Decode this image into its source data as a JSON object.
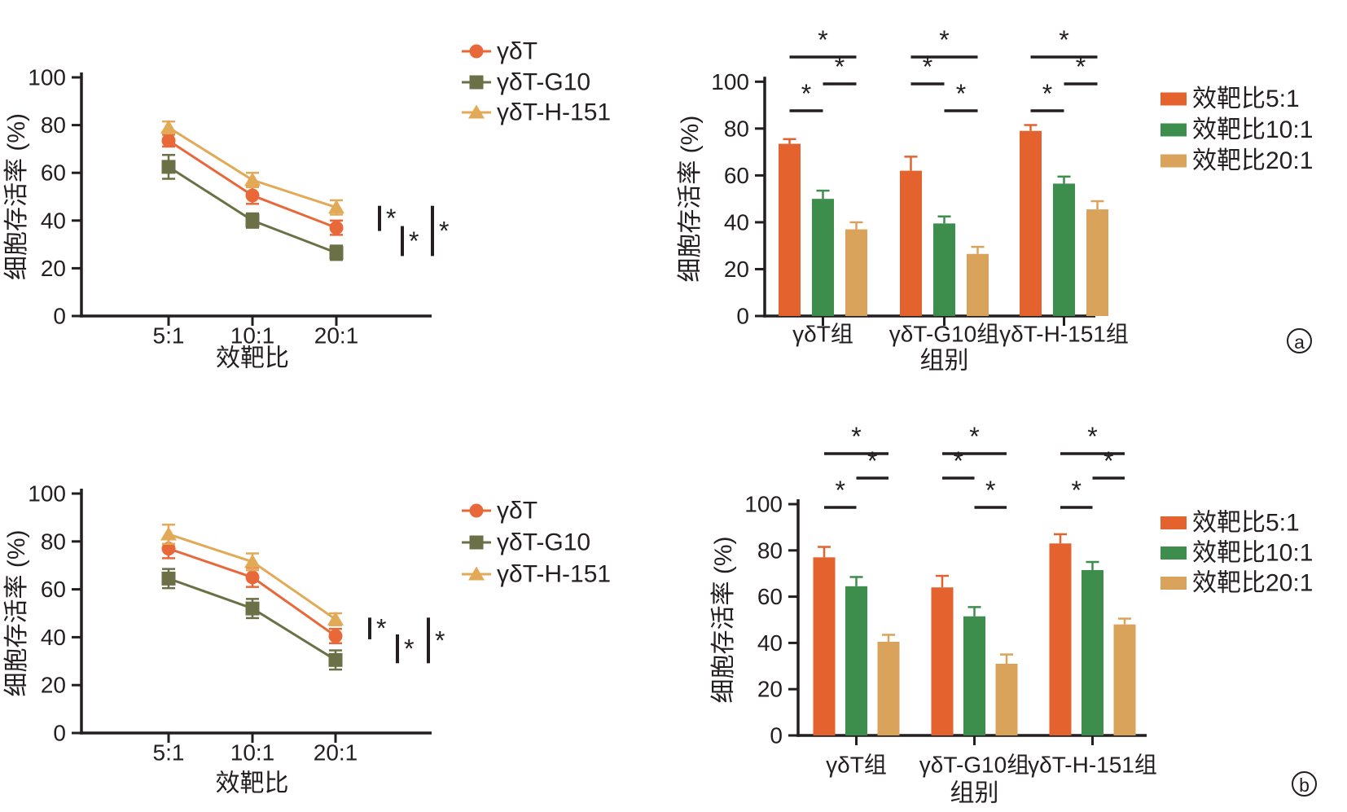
{
  "figure": {
    "background": "#FFFFFF",
    "panel_labels": {
      "a": "a",
      "b": "b"
    }
  },
  "colors": {
    "axis": "#231F20",
    "line_orange": "#E8683A",
    "line_olive": "#6B7046",
    "line_tan": "#E2A957",
    "bar_orange": "#E3622E",
    "bar_green": "#3D8E4D",
    "bar_tan": "#D9A35C"
  },
  "chart_data": [
    {
      "id": "line-a",
      "panel": "a",
      "type": "line",
      "title": "",
      "xlabel": "效靶比",
      "ylabel": "细胞存活率 (%)",
      "categories": [
        "5:1",
        "10:1",
        "20:1"
      ],
      "ylim": [
        0,
        100
      ],
      "yticks": [
        0,
        20,
        40,
        60,
        80,
        100
      ],
      "grid": false,
      "legend_position": "right-top",
      "series": [
        {
          "name": "γδT",
          "color": "#E8683A",
          "marker": "circle",
          "values": [
            73.5,
            50.5,
            37
          ],
          "errors": [
            2.5,
            3.5,
            3
          ]
        },
        {
          "name": "γδT-G10",
          "color": "#6B7046",
          "marker": "square",
          "values": [
            62.5,
            40,
            26.5
          ],
          "errors": [
            5,
            3,
            3
          ]
        },
        {
          "name": "γδT-H-151",
          "color": "#E2A957",
          "marker": "triangle",
          "values": [
            79,
            57,
            45.5
          ],
          "errors": [
            2.5,
            3,
            3
          ]
        }
      ],
      "significance": [
        {
          "pair": [
            2,
            0
          ],
          "at_category": "20:1",
          "label": "*"
        },
        {
          "pair": [
            0,
            1
          ],
          "at_category": "20:1",
          "label": "*"
        },
        {
          "pair": [
            2,
            1
          ],
          "at_category": "20:1",
          "label": "*"
        }
      ]
    },
    {
      "id": "bar-a",
      "panel": "a",
      "type": "bar",
      "title": "",
      "xlabel": "组别",
      "ylabel": "细胞存活率 (%)",
      "categories": [
        "γδT组",
        "γδT-G10组",
        "γδT-H-151组"
      ],
      "ylim": [
        0,
        100
      ],
      "yticks": [
        0,
        20,
        40,
        60,
        80,
        100
      ],
      "grid": false,
      "legend_position": "right-top",
      "series": [
        {
          "name": "效靶比5:1",
          "color": "#E3622E",
          "values": [
            73.5,
            62,
            79
          ],
          "errors": [
            2,
            6,
            2.5
          ]
        },
        {
          "name": "效靶比10:1",
          "color": "#3D8E4D",
          "values": [
            50,
            39.5,
            56.5
          ],
          "errors": [
            3.5,
            3,
            3
          ]
        },
        {
          "name": "效靶比20:1",
          "color": "#D9A35C",
          "values": [
            37,
            26.5,
            45.5
          ],
          "errors": [
            3,
            3,
            3.5
          ]
        }
      ],
      "brackets": [
        {
          "group": 0,
          "bars": [
            0,
            1
          ],
          "level": 0,
          "label": "*"
        },
        {
          "group": 0,
          "bars": [
            1,
            2
          ],
          "level": 1,
          "label": "*"
        },
        {
          "group": 0,
          "bars": [
            0,
            2
          ],
          "level": 2,
          "label": "*"
        },
        {
          "group": 1,
          "bars": [
            0,
            1
          ],
          "level": 1,
          "label": "*"
        },
        {
          "group": 1,
          "bars": [
            1,
            2
          ],
          "level": 0,
          "label": "*"
        },
        {
          "group": 1,
          "bars": [
            0,
            2
          ],
          "level": 2,
          "label": "*"
        },
        {
          "group": 2,
          "bars": [
            0,
            1
          ],
          "level": 0,
          "label": "*"
        },
        {
          "group": 2,
          "bars": [
            1,
            2
          ],
          "level": 1,
          "label": "*"
        },
        {
          "group": 2,
          "bars": [
            0,
            2
          ],
          "level": 2,
          "label": "*"
        }
      ]
    },
    {
      "id": "line-b",
      "panel": "b",
      "type": "line",
      "title": "",
      "xlabel": "效靶比",
      "ylabel": "细胞存活率 (%)",
      "categories": [
        "5:1",
        "10:1",
        "20:1"
      ],
      "ylim": [
        0,
        100
      ],
      "yticks": [
        0,
        20,
        40,
        60,
        80,
        100
      ],
      "grid": false,
      "legend_position": "right-top",
      "series": [
        {
          "name": "γδT",
          "color": "#E8683A",
          "marker": "circle",
          "values": [
            77,
            65,
            40.5
          ],
          "errors": [
            4,
            4,
            3
          ]
        },
        {
          "name": "γδT-G10",
          "color": "#6B7046",
          "marker": "square",
          "values": [
            64.5,
            52,
            30.5
          ],
          "errors": [
            4,
            4,
            4
          ]
        },
        {
          "name": "γδT-H-151",
          "color": "#E2A957",
          "marker": "triangle",
          "values": [
            83,
            71.5,
            47.5
          ],
          "errors": [
            4,
            3.5,
            2.5
          ]
        }
      ],
      "significance": [
        {
          "pair": [
            2,
            0
          ],
          "at_category": "20:1",
          "label": "*"
        },
        {
          "pair": [
            0,
            1
          ],
          "at_category": "20:1",
          "label": "*"
        },
        {
          "pair": [
            2,
            1
          ],
          "at_category": "20:1",
          "label": "*"
        }
      ]
    },
    {
      "id": "bar-b",
      "panel": "b",
      "type": "bar",
      "title": "",
      "xlabel": "组别",
      "ylabel": "细胞存活率 (%)",
      "categories": [
        "γδT组",
        "γδT-G10组",
        "γδT-H-151组"
      ],
      "ylim": [
        0,
        100
      ],
      "yticks": [
        0,
        20,
        40,
        60,
        80,
        100
      ],
      "grid": false,
      "legend_position": "right-top",
      "series": [
        {
          "name": "效靶比5:1",
          "color": "#E3622E",
          "values": [
            77,
            64,
            83
          ],
          "errors": [
            4.5,
            5,
            4
          ]
        },
        {
          "name": "效靶比10:1",
          "color": "#3D8E4D",
          "values": [
            64.5,
            51.5,
            71.5
          ],
          "errors": [
            4,
            4,
            3.5
          ]
        },
        {
          "name": "效靶比20:1",
          "color": "#D9A35C",
          "values": [
            40.5,
            31,
            48
          ],
          "errors": [
            3,
            4,
            2.5
          ]
        }
      ],
      "brackets": [
        {
          "group": 0,
          "bars": [
            0,
            1
          ],
          "level": 0,
          "label": "*"
        },
        {
          "group": 0,
          "bars": [
            1,
            2
          ],
          "level": 1,
          "label": "*"
        },
        {
          "group": 0,
          "bars": [
            0,
            2
          ],
          "level": 2,
          "label": "*"
        },
        {
          "group": 1,
          "bars": [
            0,
            1
          ],
          "level": 1,
          "label": "*"
        },
        {
          "group": 1,
          "bars": [
            1,
            2
          ],
          "level": 0,
          "label": "*"
        },
        {
          "group": 1,
          "bars": [
            0,
            2
          ],
          "level": 2,
          "label": "*"
        },
        {
          "group": 2,
          "bars": [
            0,
            1
          ],
          "level": 0,
          "label": "*"
        },
        {
          "group": 2,
          "bars": [
            1,
            2
          ],
          "level": 1,
          "label": "*"
        },
        {
          "group": 2,
          "bars": [
            0,
            2
          ],
          "level": 2,
          "label": "*"
        }
      ]
    }
  ]
}
